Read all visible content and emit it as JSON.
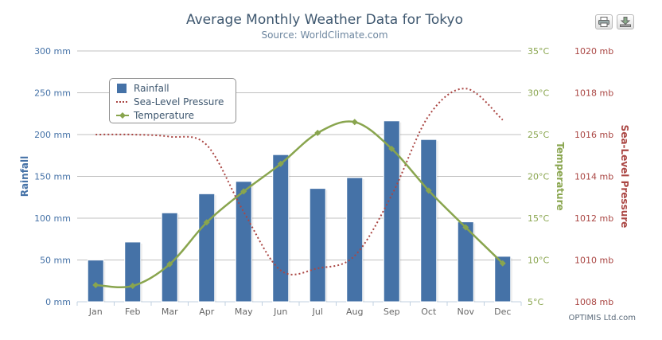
{
  "header": {
    "title": "Average Monthly Weather Data for Tokyo",
    "subtitle": "Source: WorldClimate.com"
  },
  "toolbar": {
    "print_icon": "printer-icon",
    "export_icon": "download-icon"
  },
  "credits": "OPTIMIS Ltd.com",
  "colors": {
    "rainfall": "#4572a7",
    "temperature": "#89a54e",
    "pressure": "#aa4643",
    "grid": "#c0c0c0",
    "axis_text": "#666666"
  },
  "legend": {
    "items": [
      {
        "label": "Rainfall",
        "symbol": "bar"
      },
      {
        "label": "Sea-Level Pressure",
        "symbol": "dotted-line"
      },
      {
        "label": "Temperature",
        "symbol": "line-marker"
      }
    ]
  },
  "chart_data": {
    "type": "bar+line",
    "title": "Average Monthly Weather Data for Tokyo",
    "subtitle": "Source: WorldClimate.com",
    "categories": [
      "Jan",
      "Feb",
      "Mar",
      "Apr",
      "May",
      "Jun",
      "Jul",
      "Aug",
      "Sep",
      "Oct",
      "Nov",
      "Dec"
    ],
    "series": [
      {
        "name": "Rainfall",
        "type": "column",
        "axis": "rainfall",
        "values": [
          49.9,
          71.5,
          106.4,
          129.2,
          144.0,
          176.0,
          135.6,
          148.5,
          216.4,
          194.1,
          95.6,
          54.4
        ]
      },
      {
        "name": "Sea-Level Pressure",
        "type": "spline-dotted",
        "axis": "pressure",
        "values": [
          1016,
          1016,
          1015.9,
          1015.5,
          1012.3,
          1009.5,
          1009.6,
          1010.2,
          1013.1,
          1016.9,
          1018.2,
          1016.7
        ]
      },
      {
        "name": "Temperature",
        "type": "spline",
        "axis": "temperature",
        "values": [
          7.0,
          6.9,
          9.5,
          14.5,
          18.2,
          21.5,
          25.2,
          26.5,
          23.3,
          18.3,
          13.9,
          9.6
        ]
      }
    ],
    "axes": {
      "rainfall": {
        "title": "Rainfall",
        "min": 0,
        "max": 300,
        "ticks": [
          "0 mm",
          "50 mm",
          "100 mm",
          "150 mm",
          "200 mm",
          "250 mm",
          "300 mm"
        ]
      },
      "temperature": {
        "title": "Temperature",
        "min": 5,
        "max": 35,
        "ticks": [
          "5°C",
          "10°C",
          "15°C",
          "20°C",
          "25°C",
          "30°C",
          "35°C"
        ]
      },
      "pressure": {
        "title": "Sea-Level Pressure",
        "min": 1008,
        "max": 1020,
        "ticks": [
          "1008 mb",
          "1010 mb",
          "1012 mb",
          "1014 mb",
          "1016 mb",
          "1018 mb",
          "1020 mb"
        ]
      }
    },
    "legend_position": "top-left-inside",
    "grid": true
  }
}
